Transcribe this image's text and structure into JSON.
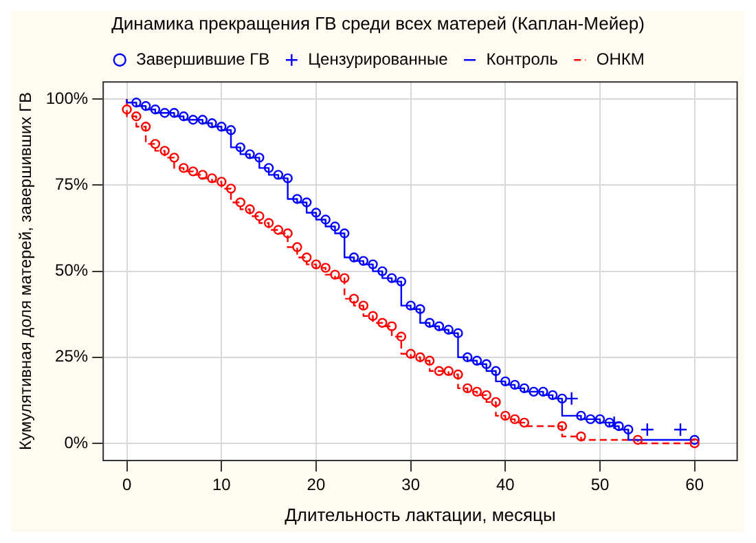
{
  "chart_data": {
    "type": "step",
    "title": "Динамика прекращения ГВ среди всех матерей (Каплан-Мейер)",
    "xlabel": "Длительность лактации, месяцы",
    "ylabel": "Кумулятивная доля матерей, завершивших ГВ",
    "xlim": [
      -2.5,
      64.5
    ],
    "xticks": [
      0,
      10,
      20,
      30,
      40,
      50,
      60
    ],
    "ylim": [
      -5,
      105
    ],
    "yticks": [
      {
        "value": 0,
        "label": "0%"
      },
      {
        "value": 25,
        "label": "25%"
      },
      {
        "value": 50,
        "label": "50%"
      },
      {
        "value": 75,
        "label": "75%"
      },
      {
        "value": 100,
        "label": "100%"
      }
    ],
    "grid": true,
    "legend": "top",
    "series": [
      {
        "name": "Завершившие ГВ",
        "type": "scatter",
        "marker": "circle",
        "color": "#0000ff",
        "x": [
          1,
          2,
          3,
          4,
          5,
          6,
          7,
          8,
          9,
          10,
          11,
          12,
          13,
          14,
          15,
          16,
          17,
          18,
          19,
          20,
          21,
          22,
          23,
          24,
          25,
          26,
          27,
          28,
          29,
          30,
          31,
          32,
          33,
          34,
          35,
          36,
          37,
          38,
          39,
          40,
          41,
          42,
          43,
          44,
          45,
          46,
          48,
          49,
          50,
          51,
          52,
          53,
          60,
          0,
          1,
          2,
          3,
          4,
          5,
          6,
          7,
          8,
          9,
          10,
          11,
          12,
          13,
          14,
          15,
          16,
          17,
          18,
          19,
          20,
          21,
          22,
          23,
          24,
          25,
          26,
          27,
          28,
          29,
          30,
          31,
          32,
          33,
          34,
          35,
          36,
          37,
          38,
          39,
          40,
          41,
          42,
          46,
          48,
          54,
          60
        ],
        "values": [
          99,
          98,
          97,
          96,
          96,
          95,
          94,
          94,
          93,
          92,
          91,
          86,
          84,
          83,
          80,
          78,
          77,
          71,
          70,
          67,
          65,
          63,
          61,
          54,
          53,
          52,
          50,
          48,
          47,
          40,
          39,
          35,
          34,
          33,
          32,
          25,
          24,
          23,
          21,
          18,
          17,
          16,
          15,
          15,
          14,
          13,
          8,
          7,
          7,
          6,
          5,
          4,
          1,
          97,
          95,
          92,
          87,
          85,
          83,
          80,
          79,
          78,
          77,
          76,
          74,
          70,
          68,
          66,
          64,
          62,
          61,
          57,
          54,
          52,
          51,
          49,
          48,
          42,
          40,
          37,
          35,
          34,
          31,
          26,
          25,
          24,
          21,
          21,
          20,
          16,
          15,
          14,
          12,
          8,
          7,
          6,
          5,
          2,
          1,
          0
        ],
        "colors": [
          "#0000ff",
          "#0000ff",
          "#0000ff",
          "#0000ff",
          "#0000ff",
          "#0000ff",
          "#0000ff",
          "#0000ff",
          "#0000ff",
          "#0000ff",
          "#0000ff",
          "#0000ff",
          "#0000ff",
          "#0000ff",
          "#0000ff",
          "#0000ff",
          "#0000ff",
          "#0000ff",
          "#0000ff",
          "#0000ff",
          "#0000ff",
          "#0000ff",
          "#0000ff",
          "#0000ff",
          "#0000ff",
          "#0000ff",
          "#0000ff",
          "#0000ff",
          "#0000ff",
          "#0000ff",
          "#0000ff",
          "#0000ff",
          "#0000ff",
          "#0000ff",
          "#0000ff",
          "#0000ff",
          "#0000ff",
          "#0000ff",
          "#0000ff",
          "#0000ff",
          "#0000ff",
          "#0000ff",
          "#0000ff",
          "#0000ff",
          "#0000ff",
          "#0000ff",
          "#0000ff",
          "#0000ff",
          "#0000ff",
          "#0000ff",
          "#0000ff",
          "#0000ff",
          "#0000ff",
          "#ff0000",
          "#ff0000",
          "#ff0000",
          "#ff0000",
          "#ff0000",
          "#ff0000",
          "#ff0000",
          "#ff0000",
          "#ff0000",
          "#ff0000",
          "#ff0000",
          "#ff0000",
          "#ff0000",
          "#ff0000",
          "#ff0000",
          "#ff0000",
          "#ff0000",
          "#ff0000",
          "#ff0000",
          "#ff0000",
          "#ff0000",
          "#ff0000",
          "#ff0000",
          "#ff0000",
          "#ff0000",
          "#ff0000",
          "#ff0000",
          "#ff0000",
          "#ff0000",
          "#ff0000",
          "#ff0000",
          "#ff0000",
          "#ff0000",
          "#ff0000",
          "#ff0000",
          "#ff0000",
          "#ff0000",
          "#ff0000",
          "#ff0000",
          "#ff0000",
          "#ff0000",
          "#ff0000",
          "#ff0000",
          "#ff0000",
          "#ff0000",
          "#ff0000",
          "#ff0000"
        ]
      },
      {
        "name": "Цензурированные",
        "type": "scatter",
        "marker": "cross",
        "color": "#0000ff",
        "x": [
          47,
          51.5,
          55,
          58.5
        ],
        "values": [
          13,
          6,
          4,
          4
        ]
      },
      {
        "name": "Контроль",
        "marker": "none",
        "line_style": "solid",
        "color": "#0000ff",
        "x": [
          0,
          1,
          2,
          3,
          4,
          5,
          6,
          7,
          8,
          9,
          10,
          11,
          12,
          13,
          14,
          15,
          16,
          17,
          18,
          19,
          20,
          21,
          22,
          23,
          24,
          25,
          26,
          27,
          28,
          29,
          30,
          31,
          32,
          33,
          34,
          35,
          36,
          37,
          38,
          39,
          40,
          41,
          42,
          43,
          44,
          45,
          46,
          48,
          49,
          50,
          51,
          52,
          53,
          60
        ],
        "values": [
          100,
          99,
          98,
          97,
          96,
          96,
          95,
          94,
          94,
          93,
          92,
          91,
          86,
          84,
          83,
          80,
          78,
          77,
          71,
          70,
          67,
          65,
          63,
          61,
          54,
          53,
          52,
          50,
          48,
          47,
          40,
          39,
          35,
          34,
          33,
          32,
          25,
          24,
          23,
          21,
          18,
          17,
          16,
          15,
          15,
          14,
          13,
          8,
          7,
          7,
          6,
          5,
          4,
          1
        ]
      },
      {
        "name": "ОНКМ",
        "marker": "none",
        "line_style": "dashed",
        "color": "#ff0000",
        "x": [
          0,
          0,
          1,
          2,
          3,
          4,
          5,
          6,
          7,
          8,
          9,
          10,
          11,
          12,
          13,
          14,
          15,
          16,
          17,
          18,
          19,
          20,
          21,
          22,
          23,
          24,
          25,
          26,
          27,
          28,
          29,
          30,
          31,
          32,
          33,
          34,
          35,
          36,
          37,
          38,
          39,
          40,
          41,
          42,
          46,
          48,
          54,
          60
        ],
        "values": [
          100,
          97,
          95,
          92,
          87,
          85,
          83,
          80,
          79,
          78,
          77,
          76,
          74,
          70,
          68,
          66,
          64,
          62,
          61,
          57,
          54,
          52,
          51,
          49,
          48,
          42,
          40,
          37,
          35,
          34,
          31,
          26,
          25,
          24,
          21,
          21,
          20,
          16,
          15,
          14,
          12,
          8,
          7,
          6,
          5,
          2,
          1,
          0
        ]
      }
    ]
  }
}
